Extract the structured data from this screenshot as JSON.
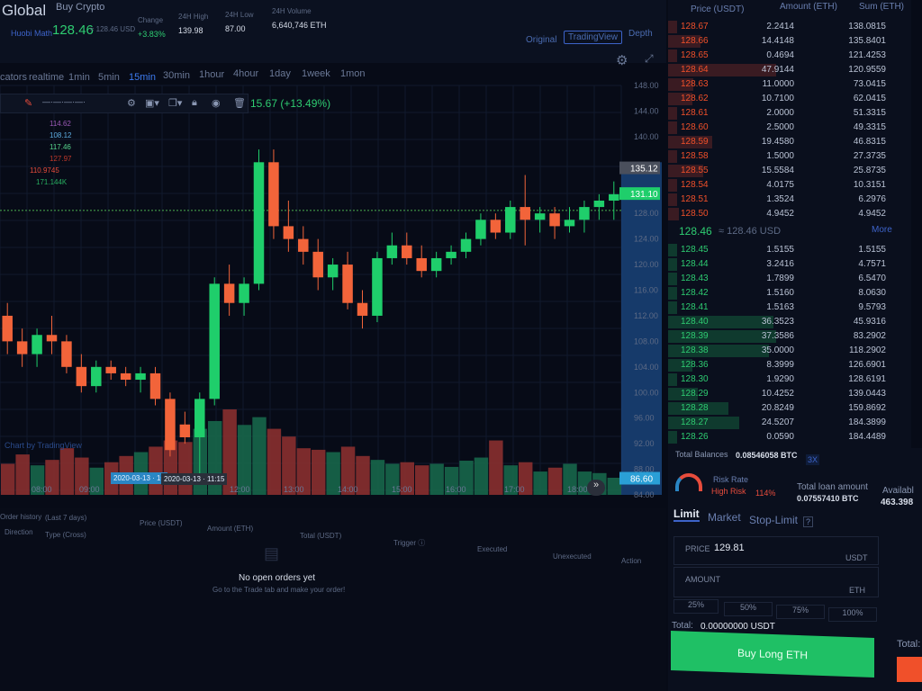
{
  "header": {
    "brand": "Global",
    "buy_crypto": "Buy Crypto",
    "pair": "Huobi Math",
    "last_price": "128.46",
    "last_usd": "≈ 128.46 USD",
    "stats": [
      {
        "label": "Change",
        "value": "+3.83%",
        "color": "#2ecc71"
      },
      {
        "label": "24H High",
        "value": "139.98",
        "color": "#d8deea"
      },
      {
        "label": "24H Low",
        "value": "87.00",
        "color": "#d8deea"
      },
      {
        "label": "24H Volume",
        "value": "6,640,746 ETH",
        "color": "#d8deea"
      }
    ]
  },
  "chart_views": {
    "original": "Original",
    "tradingview": "TradingView",
    "depth": "Depth",
    "active": "TradingView"
  },
  "timeframes": {
    "items": [
      "cators",
      "realtime",
      "1min",
      "5min",
      "15min",
      "30min",
      "1hour",
      "4hour",
      "1day",
      "1week",
      "1mon"
    ],
    "active": "15min"
  },
  "toolbar": {
    "change_label": "15.67 (+13.49%)"
  },
  "indicators": [
    {
      "value": "114.62",
      "color": "#9b59b6"
    },
    {
      "value": "108.12",
      "color": "#5dade2"
    },
    {
      "value": "117.46",
      "color": "#58d68d"
    },
    {
      "value": "127.97",
      "color": "#c0392b"
    },
    {
      "value": "110.9745",
      "color": "#e74c3c"
    },
    {
      "value": "171.144K",
      "color": "#27ae60"
    }
  ],
  "chart_data": {
    "type": "candlestick",
    "watermark": "Chart by TradingView",
    "y_ticks": [
      "148.00",
      "144.00",
      "140.00",
      "128.00",
      "124.00",
      "120.00",
      "116.00",
      "112.00",
      "108.00",
      "104.00",
      "100.00",
      "96.00",
      "92.00",
      "88.00",
      "84.00"
    ],
    "ylim": [
      84,
      148
    ],
    "x_ticks": [
      "08:00",
      "09:00",
      "12:00",
      "13:00",
      "14:00",
      "15:00",
      "16:00",
      "17:00",
      "18:00"
    ],
    "crosshair_labels": [
      "2020-03-13 · 10",
      "2020-03-13 · 11:15"
    ],
    "price_labels": [
      {
        "value": "135.12",
        "color": "#4a4f5c"
      },
      {
        "value": "131.10",
        "color": "#1fce6b"
      },
      {
        "value": "86.60",
        "color": "#2a9fd6"
      }
    ],
    "last_line": 128.46,
    "ohlc": [
      [
        112,
        114,
        106,
        108
      ],
      [
        108,
        110,
        104,
        106
      ],
      [
        106,
        110,
        104,
        109
      ],
      [
        109,
        112,
        106,
        108
      ],
      [
        108,
        109,
        103,
        104
      ],
      [
        104,
        106,
        100,
        101
      ],
      [
        101,
        105,
        100,
        104
      ],
      [
        104,
        105,
        102,
        103
      ],
      [
        103,
        104,
        101,
        102
      ],
      [
        102,
        104,
        100,
        103
      ],
      [
        103,
        104,
        98,
        99
      ],
      [
        99,
        100,
        90,
        91
      ],
      [
        95,
        97,
        92,
        93
      ],
      [
        93,
        100,
        86,
        99
      ],
      [
        99,
        118,
        98,
        117
      ],
      [
        117,
        120,
        112,
        114
      ],
      [
        114,
        118,
        112,
        117
      ],
      [
        117,
        138,
        116,
        136
      ],
      [
        136,
        138,
        124,
        126
      ],
      [
        126,
        130,
        122,
        124
      ],
      [
        124,
        126,
        120,
        122
      ],
      [
        122,
        124,
        116,
        118
      ],
      [
        118,
        121,
        116,
        120
      ],
      [
        120,
        122,
        113,
        114
      ],
      [
        114,
        116,
        110,
        112
      ],
      [
        112,
        122,
        111,
        121
      ],
      [
        121,
        125,
        120,
        123
      ],
      [
        123,
        125,
        120,
        121
      ],
      [
        121,
        123,
        118,
        119
      ],
      [
        119,
        122,
        118,
        121
      ],
      [
        121,
        123,
        120,
        122
      ],
      [
        122,
        125,
        121,
        124
      ],
      [
        124,
        128,
        123,
        127
      ],
      [
        127,
        128,
        124,
        125
      ],
      [
        125,
        130,
        124,
        129
      ],
      [
        129,
        134,
        123,
        127
      ],
      [
        127,
        129,
        125,
        128
      ],
      [
        128,
        129,
        124,
        126
      ],
      [
        126,
        129,
        125,
        127
      ],
      [
        127,
        130,
        125,
        129
      ],
      [
        129,
        131,
        127,
        130
      ],
      [
        130,
        133,
        127,
        131
      ]
    ],
    "volume": [
      40,
      52,
      38,
      45,
      60,
      48,
      35,
      42,
      50,
      55,
      62,
      70,
      68,
      85,
      95,
      110,
      90,
      100,
      85,
      75,
      60,
      58,
      55,
      62,
      50,
      45,
      40,
      42,
      38,
      40,
      36,
      44,
      48,
      70,
      38,
      42,
      30,
      35,
      40,
      30,
      28,
      22
    ]
  },
  "orders": {
    "title": "Order history",
    "range": "(Last 7 days)",
    "columns": [
      "Direction",
      "Type (Cross)",
      "Price (USDT)",
      "Amount (ETH)",
      "Total (USDT)",
      "Trigger ⓘ",
      "Executed",
      "Unexecuted",
      "Action"
    ],
    "empty_title": "No open orders yet",
    "empty_sub": "Go to the Trade tab and make your order!"
  },
  "order_book": {
    "headers": [
      "Price (USDT)",
      "Amount (ETH)",
      "Sum (ETH)"
    ],
    "asks": [
      [
        "128.67",
        "2.2414",
        "138.0815"
      ],
      [
        "128.66",
        "14.4148",
        "135.8401"
      ],
      [
        "128.65",
        "0.4694",
        "121.4253"
      ],
      [
        "128.64",
        "47.9144",
        "120.9559"
      ],
      [
        "128.63",
        "11.0000",
        "73.0415"
      ],
      [
        "128.62",
        "10.7100",
        "62.0415"
      ],
      [
        "128.61",
        "2.0000",
        "51.3315"
      ],
      [
        "128.60",
        "2.5000",
        "49.3315"
      ],
      [
        "128.59",
        "19.4580",
        "46.8315"
      ],
      [
        "128.58",
        "1.5000",
        "27.3735"
      ],
      [
        "128.55",
        "15.5584",
        "25.8735"
      ],
      [
        "128.54",
        "4.0175",
        "10.3151"
      ],
      [
        "128.51",
        "1.3524",
        "6.2976"
      ],
      [
        "128.50",
        "4.9452",
        "4.9452"
      ]
    ],
    "mid_price": "128.46",
    "mid_usd": "≈ 128.46 USD",
    "more": "More",
    "bids": [
      [
        "128.45",
        "1.5155",
        "1.5155"
      ],
      [
        "128.44",
        "3.2416",
        "4.7571"
      ],
      [
        "128.43",
        "1.7899",
        "6.5470"
      ],
      [
        "128.42",
        "1.5160",
        "8.0630"
      ],
      [
        "128.41",
        "1.5163",
        "9.5793"
      ],
      [
        "128.40",
        "36.3523",
        "45.9316"
      ],
      [
        "128.39",
        "37.3586",
        "83.2902"
      ],
      [
        "128.38",
        "35.0000",
        "118.2902"
      ],
      [
        "128.36",
        "8.3999",
        "126.6901"
      ],
      [
        "128.30",
        "1.9290",
        "128.6191"
      ],
      [
        "128.29",
        "10.4252",
        "139.0443"
      ],
      [
        "128.28",
        "20.8249",
        "159.8692"
      ],
      [
        "128.27",
        "24.5207",
        "184.3899"
      ],
      [
        "128.26",
        "0.0590",
        "184.4489"
      ]
    ]
  },
  "trade": {
    "balance_label": "Total Balances",
    "balance": "0.08546058 BTC",
    "leverage": "3X",
    "risk_label": "Risk Rate",
    "risk_level": "High Risk",
    "risk_pct": "114%",
    "loan_label": "Total loan amount",
    "loan": "0.07557410 BTC",
    "avail_label": "Availabl",
    "avail": "463.398",
    "tabs": [
      "Limit",
      "Market",
      "Stop-Limit"
    ],
    "active_tab": "Limit",
    "price_label": "PRICE",
    "price": "129.81",
    "price_unit": "USDT",
    "amount_label": "AMOUNT",
    "amount_unit": "ETH",
    "pcts": [
      "25%",
      "50%",
      "75%",
      "100%"
    ],
    "total_label": "Total:",
    "total": "0.00000000 USDT",
    "buy_button": "Buy Long ETH",
    "accent_buy": "#1fc065",
    "accent_sell": "#f0502a"
  }
}
